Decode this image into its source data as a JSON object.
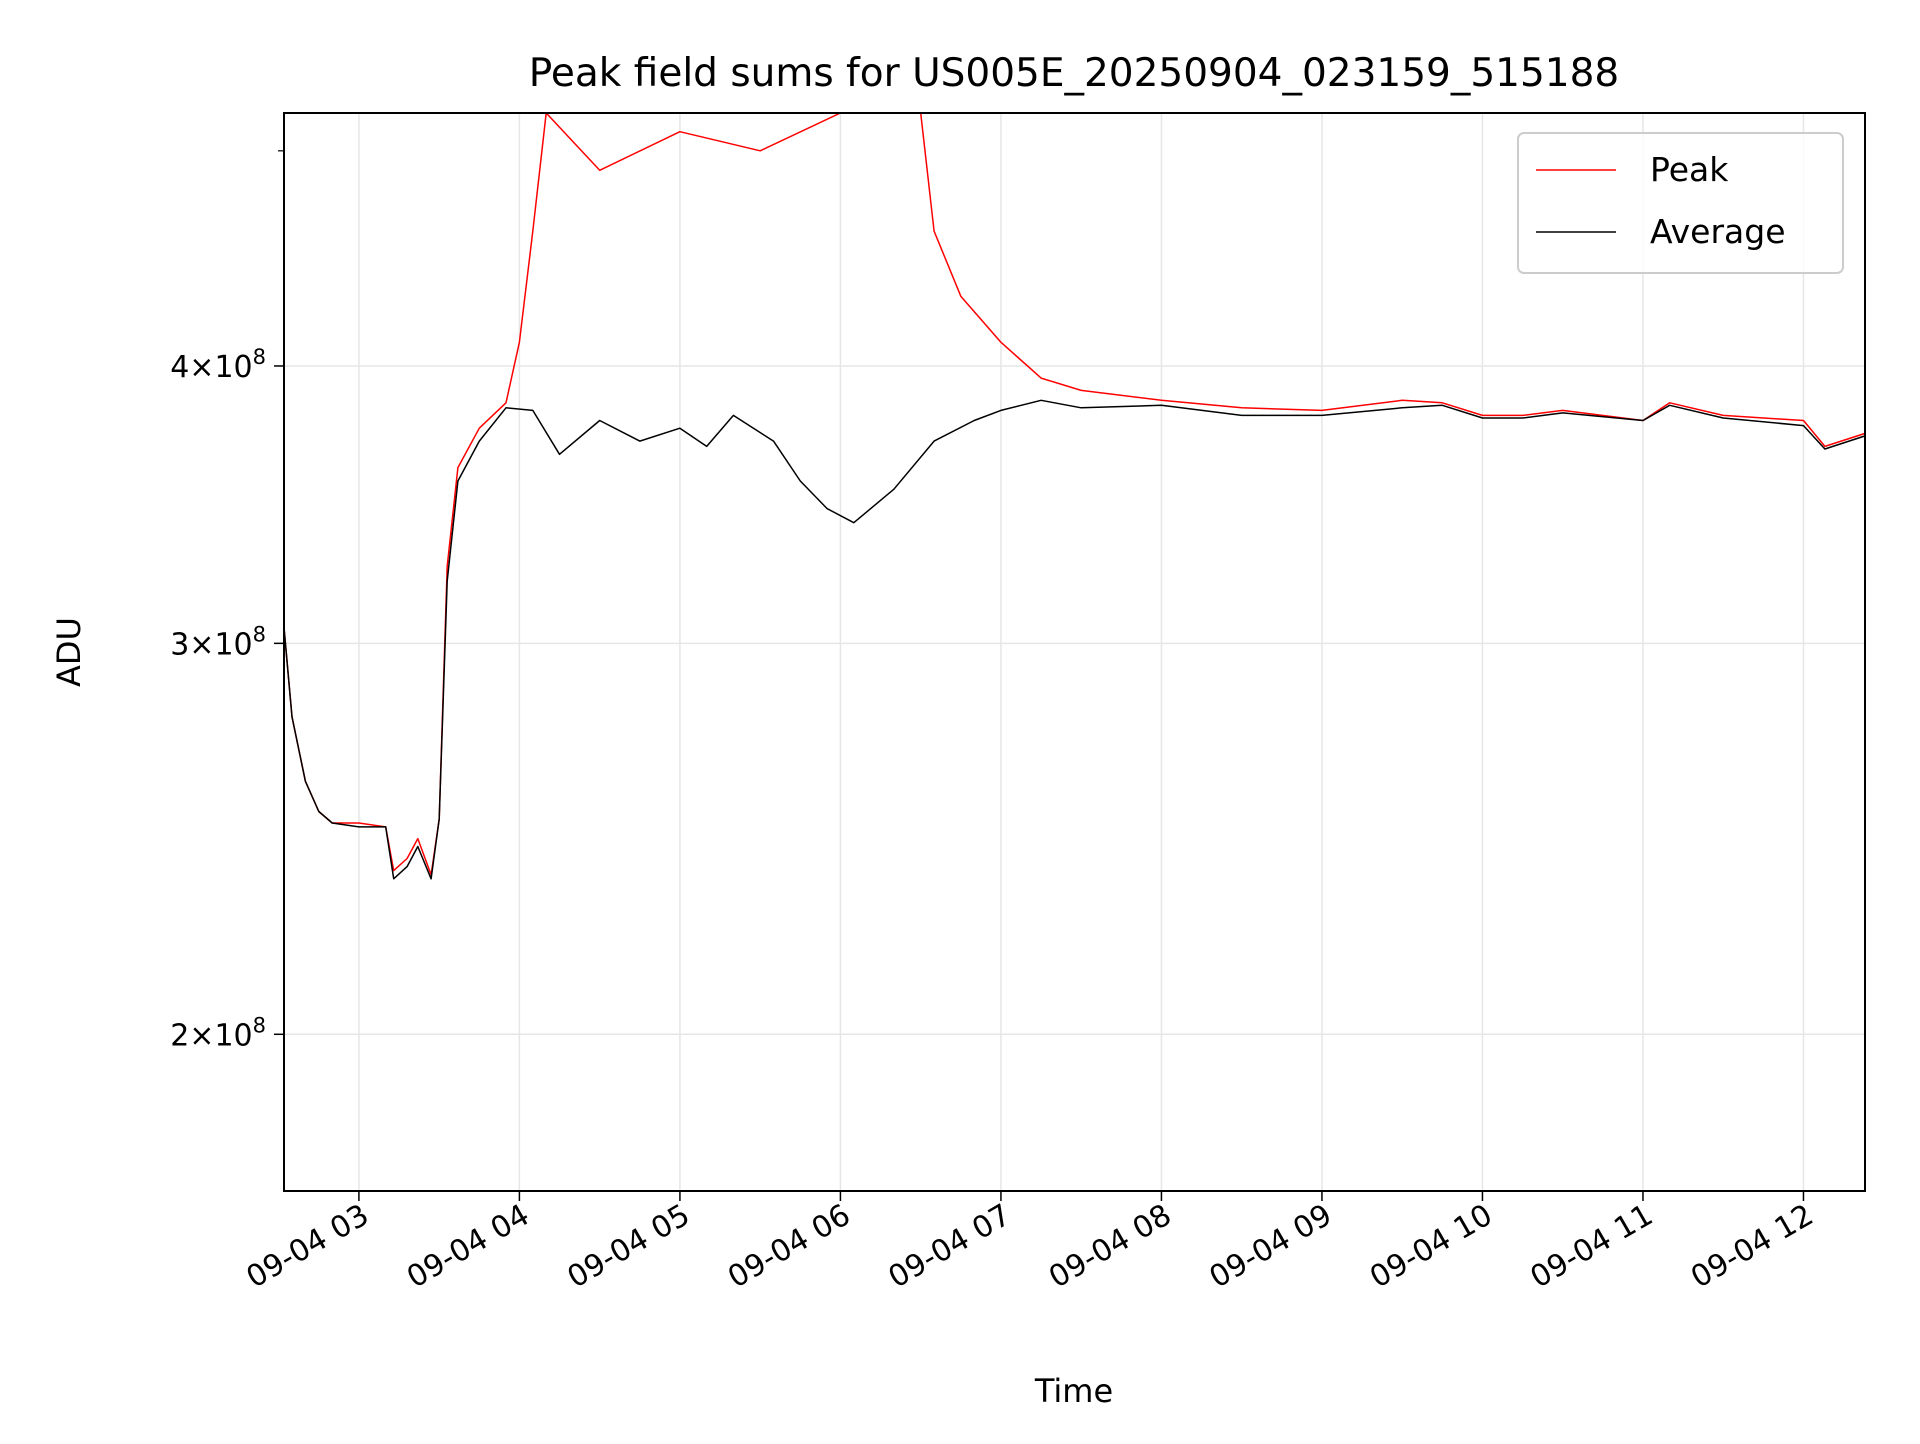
{
  "chart_data": {
    "type": "line",
    "title": "Peak field sums for US005E_20250904_023159_515188",
    "xlabel": "Time",
    "ylabel": "ADU",
    "y_scale": "log",
    "grid": true,
    "legend_position": "top-right",
    "xlim": [
      "09-04 02:32",
      "09-04 12:23"
    ],
    "ylim": [
      170000000.0,
      520000000.0
    ],
    "x_ticks": [
      "09-04 03",
      "09-04 04",
      "09-04 05",
      "09-04 06",
      "09-04 07",
      "09-04 08",
      "09-04 09",
      "09-04 10",
      "09-04 11",
      "09-04 12"
    ],
    "y_ticks": [
      {
        "value": 200000000.0,
        "mantissa": "2",
        "base": "10",
        "exponent": "8"
      },
      {
        "value": 300000000.0,
        "mantissa": "3",
        "base": "10",
        "exponent": "8"
      },
      {
        "value": 400000000.0,
        "mantissa": "4",
        "base": "10",
        "exponent": "8"
      }
    ],
    "series": [
      {
        "name": "Peak",
        "color": "#ff0000",
        "note_points_are_hh_mm_and_adu": true,
        "points": [
          [
            "02:32",
            305000000.0
          ],
          [
            "02:35",
            278000000.0
          ],
          [
            "02:40",
            260000000.0
          ],
          [
            "02:45",
            252000000.0
          ],
          [
            "02:50",
            249000000.0
          ],
          [
            "03:00",
            249000000.0
          ],
          [
            "03:10",
            248000000.0
          ],
          [
            "03:13",
            237000000.0
          ],
          [
            "03:18",
            240000000.0
          ],
          [
            "03:22",
            245000000.0
          ],
          [
            "03:27",
            236000000.0
          ],
          [
            "03:30",
            250000000.0
          ],
          [
            "03:33",
            325000000.0
          ],
          [
            "03:37",
            360000000.0
          ],
          [
            "03:45",
            375000000.0
          ],
          [
            "03:55",
            385000000.0
          ],
          [
            "04:00",
            410000000.0
          ],
          [
            "04:05",
            460000000.0
          ],
          [
            "04:10",
            520000000.0
          ],
          [
            "04:30",
            490000000.0
          ],
          [
            "05:00",
            510000000.0
          ],
          [
            "05:30",
            500000000.0
          ],
          [
            "06:00",
            520000000.0
          ],
          [
            "06:30",
            520000000.0
          ],
          [
            "06:35",
            460000000.0
          ],
          [
            "06:45",
            430000000.0
          ],
          [
            "07:00",
            410000000.0
          ],
          [
            "07:15",
            395000000.0
          ],
          [
            "07:30",
            390000000.0
          ],
          [
            "08:00",
            386000000.0
          ],
          [
            "08:30",
            383000000.0
          ],
          [
            "09:00",
            382000000.0
          ],
          [
            "09:30",
            386000000.0
          ],
          [
            "09:45",
            385000000.0
          ],
          [
            "10:00",
            380000000.0
          ],
          [
            "10:15",
            380000000.0
          ],
          [
            "10:30",
            382000000.0
          ],
          [
            "11:00",
            378000000.0
          ],
          [
            "11:10",
            385000000.0
          ],
          [
            "11:30",
            380000000.0
          ],
          [
            "12:00",
            378000000.0
          ],
          [
            "12:08",
            368000000.0
          ],
          [
            "12:23",
            373000000.0
          ]
        ]
      },
      {
        "name": "Average",
        "color": "#000000",
        "points": [
          [
            "02:32",
            305000000.0
          ],
          [
            "02:35",
            278000000.0
          ],
          [
            "02:40",
            260000000.0
          ],
          [
            "02:45",
            252000000.0
          ],
          [
            "02:50",
            249000000.0
          ],
          [
            "03:00",
            248000000.0
          ],
          [
            "03:10",
            248000000.0
          ],
          [
            "03:13",
            235000000.0
          ],
          [
            "03:18",
            238000000.0
          ],
          [
            "03:22",
            243000000.0
          ],
          [
            "03:27",
            235000000.0
          ],
          [
            "03:30",
            250000000.0
          ],
          [
            "03:33",
            320000000.0
          ],
          [
            "03:37",
            355000000.0
          ],
          [
            "03:45",
            370000000.0
          ],
          [
            "03:55",
            383000000.0
          ],
          [
            "04:05",
            382000000.0
          ],
          [
            "04:15",
            365000000.0
          ],
          [
            "04:30",
            378000000.0
          ],
          [
            "04:45",
            370000000.0
          ],
          [
            "05:00",
            375000000.0
          ],
          [
            "05:10",
            368000000.0
          ],
          [
            "05:20",
            380000000.0
          ],
          [
            "05:35",
            370000000.0
          ],
          [
            "05:45",
            355000000.0
          ],
          [
            "05:55",
            345000000.0
          ],
          [
            "06:05",
            340000000.0
          ],
          [
            "06:20",
            352000000.0
          ],
          [
            "06:35",
            370000000.0
          ],
          [
            "06:50",
            378000000.0
          ],
          [
            "07:00",
            382000000.0
          ],
          [
            "07:15",
            386000000.0
          ],
          [
            "07:30",
            383000000.0
          ],
          [
            "08:00",
            384000000.0
          ],
          [
            "08:30",
            380000000.0
          ],
          [
            "09:00",
            380000000.0
          ],
          [
            "09:30",
            383000000.0
          ],
          [
            "09:45",
            384000000.0
          ],
          [
            "10:00",
            379000000.0
          ],
          [
            "10:15",
            379000000.0
          ],
          [
            "10:30",
            381000000.0
          ],
          [
            "11:00",
            378000000.0
          ],
          [
            "11:10",
            384000000.0
          ],
          [
            "11:30",
            379000000.0
          ],
          [
            "12:00",
            376000000.0
          ],
          [
            "12:08",
            367000000.0
          ],
          [
            "12:23",
            372000000.0
          ]
        ]
      }
    ]
  }
}
